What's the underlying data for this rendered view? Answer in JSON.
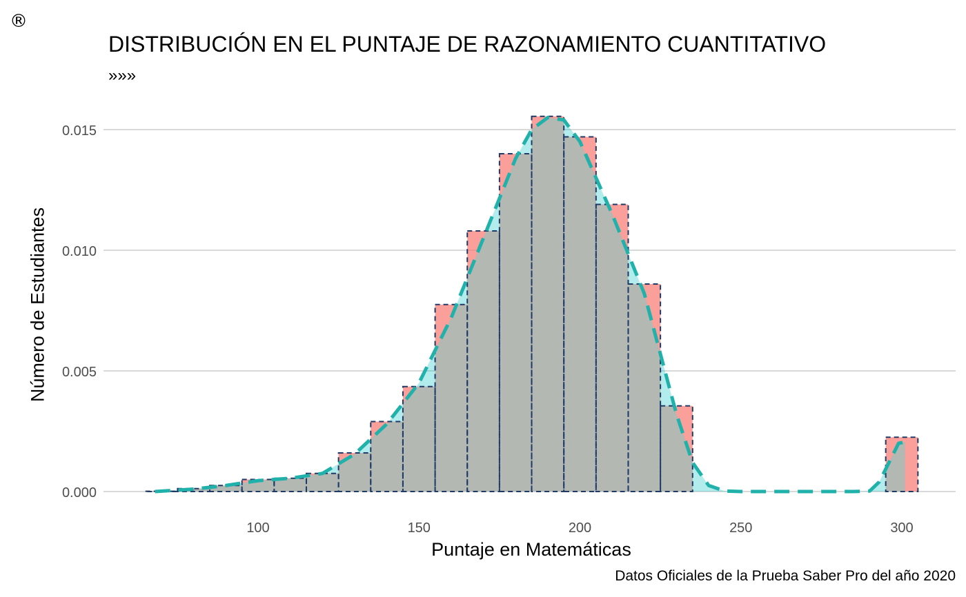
{
  "mark": "®",
  "chart_data": {
    "type": "bar",
    "title": "DISTRIBUCIÓN EN EL PUNTAJE DE RAZONAMIENTO CUANTITATIVO",
    "subtitle": "»»»",
    "caption": "Datos Oficiales de la Prueba Saber Pro del año 2020",
    "xlabel": "Puntaje en Matemáticas",
    "ylabel": "Número de Estudiantes",
    "xlim": [
      60,
      310
    ],
    "ylim": [
      0,
      0.0158
    ],
    "grid": true,
    "x_ticks": [
      100,
      150,
      200,
      250,
      300
    ],
    "x_tick_labels": [
      "100",
      "150",
      "200",
      "250",
      "300"
    ],
    "y_ticks": [
      0,
      0.005,
      0.01,
      0.015
    ],
    "y_tick_labels": [
      "0.000",
      "0.005",
      "0.010",
      "0.015"
    ],
    "bin_width": 10,
    "histogram_bins": [
      {
        "x": 70,
        "value": 1e-05
      },
      {
        "x": 80,
        "value": 0.00012
      },
      {
        "x": 90,
        "value": 0.00025
      },
      {
        "x": 100,
        "value": 0.0005
      },
      {
        "x": 110,
        "value": 0.00055
      },
      {
        "x": 120,
        "value": 0.00075
      },
      {
        "x": 130,
        "value": 0.0016
      },
      {
        "x": 140,
        "value": 0.0029
      },
      {
        "x": 150,
        "value": 0.00435
      },
      {
        "x": 160,
        "value": 0.00775
      },
      {
        "x": 170,
        "value": 0.0108
      },
      {
        "x": 180,
        "value": 0.014
      },
      {
        "x": 190,
        "value": 0.01555
      },
      {
        "x": 200,
        "value": 0.0147
      },
      {
        "x": 210,
        "value": 0.0119
      },
      {
        "x": 220,
        "value": 0.0086
      },
      {
        "x": 230,
        "value": 0.00355
      },
      {
        "x": 240,
        "value": 0
      },
      {
        "x": 250,
        "value": 0
      },
      {
        "x": 260,
        "value": 0
      },
      {
        "x": 270,
        "value": 0
      },
      {
        "x": 280,
        "value": 0
      },
      {
        "x": 290,
        "value": 0
      },
      {
        "x": 300,
        "value": 0.00225
      }
    ],
    "density_curve": {
      "x": [
        68,
        80,
        90,
        100,
        110,
        120,
        130,
        140,
        150,
        160,
        170,
        180,
        185,
        190,
        195,
        200,
        210,
        220,
        230,
        235,
        240,
        245,
        250,
        260,
        270,
        280,
        285,
        290,
        293,
        296,
        299,
        301
      ],
      "y": [
        0,
        0.0001,
        0.00025,
        0.00045,
        0.00055,
        0.00075,
        0.00155,
        0.0028,
        0.0045,
        0.0072,
        0.0105,
        0.0138,
        0.015,
        0.0155,
        0.0154,
        0.0145,
        0.0115,
        0.0082,
        0.0032,
        0.0012,
        0.00025,
        2e-05,
        0,
        0,
        0,
        0,
        0,
        2e-05,
        0.0004,
        0.0012,
        0.002,
        0.00205
      ]
    },
    "colors": {
      "histogram_fill": "#f8766d",
      "histogram_border": "#1f3a66",
      "density_fill": "#00bfc4",
      "density_line": "#20b2aa",
      "overlap": "#b3b8b3",
      "grid": "#d9d9d9",
      "axis_text": "#4d4d4d"
    }
  }
}
